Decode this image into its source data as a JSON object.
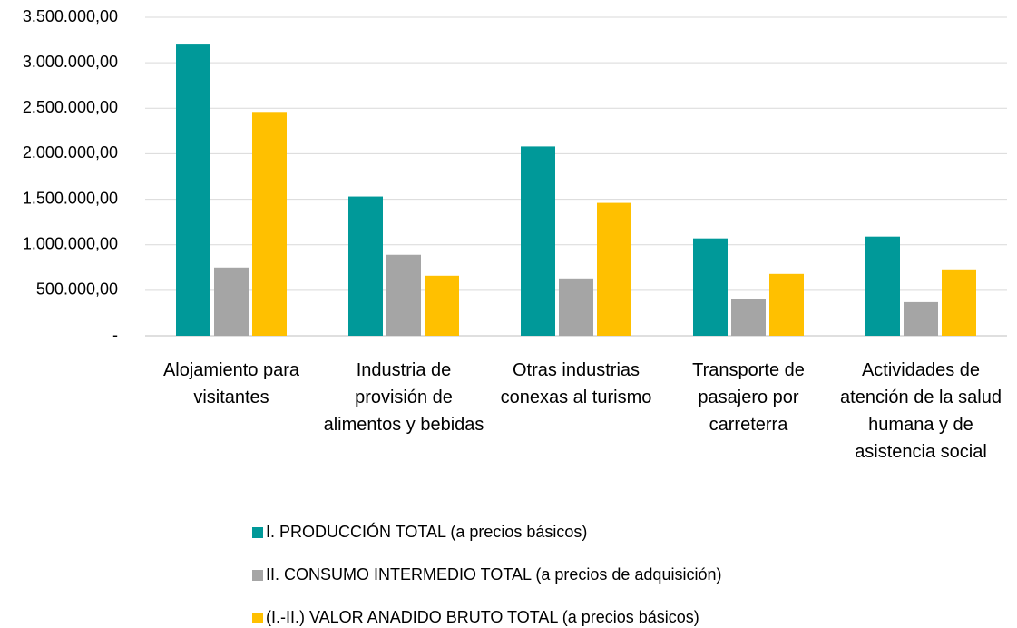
{
  "chart_data": {
    "type": "bar",
    "categories": [
      "Alojamiento para visitantes",
      "Industria de provisión de alimentos y bebidas",
      "Otras industrias conexas al turismo",
      "Transporte de pasajero por carreterra",
      "Actividades de atención de la salud humana y de asistencia social"
    ],
    "series": [
      {
        "name": "I. PRODUCCIÓN TOTAL (a precios básicos)",
        "color": "#009999",
        "values": [
          3200000,
          1530000,
          2080000,
          1070000,
          1090000
        ]
      },
      {
        "name": "II. CONSUMO INTERMEDIO TOTAL (a precios de adquisición)",
        "color": "#a5a5a5",
        "values": [
          750000,
          890000,
          630000,
          400000,
          370000
        ]
      },
      {
        "name": "(I.-II.) VALOR ANADIDO BRUTO TOTAL (a precios básicos)",
        "color": "#ffc000",
        "values": [
          2460000,
          660000,
          1460000,
          680000,
          730000
        ]
      }
    ],
    "ylim": [
      0,
      3500000
    ],
    "yticks": [
      {
        "value": 0,
        "label": "-"
      },
      {
        "value": 500000,
        "label": "500.000,00"
      },
      {
        "value": 1000000,
        "label": "1.000.000,00"
      },
      {
        "value": 1500000,
        "label": "1.500.000,00"
      },
      {
        "value": 2000000,
        "label": "2.000.000,00"
      },
      {
        "value": 2500000,
        "label": "2.500.000,00"
      },
      {
        "value": 3000000,
        "label": "3.000.000,00"
      },
      {
        "value": 3500000,
        "label": "3.500.000,00"
      }
    ],
    "grid": true,
    "legend": "bottom"
  }
}
